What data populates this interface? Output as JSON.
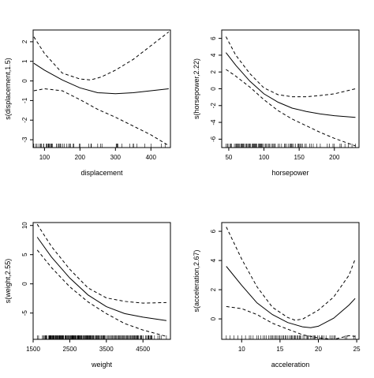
{
  "chart_data": [
    {
      "type": "line",
      "xlabel": "displacement",
      "ylabel": "s(displacement,1.5)",
      "xlim": [
        68,
        455
      ],
      "ylim": [
        -3.4,
        2.6
      ],
      "xticks": [
        100,
        200,
        300,
        400
      ],
      "yticks": [
        -3,
        -2,
        -1,
        0,
        1,
        2
      ],
      "series": [
        {
          "role": "fit",
          "x": [
            70,
            100,
            150,
            200,
            250,
            300,
            350,
            400,
            450
          ],
          "y": [
            0.9,
            0.55,
            0.05,
            -0.35,
            -0.6,
            -0.65,
            -0.6,
            -0.5,
            -0.4
          ]
        },
        {
          "role": "upper",
          "x": [
            70,
            100,
            150,
            200,
            230,
            260,
            300,
            350,
            400,
            450
          ],
          "y": [
            2.25,
            1.4,
            0.4,
            0.1,
            0.05,
            0.2,
            0.55,
            1.1,
            1.8,
            2.5
          ]
        },
        {
          "role": "lower",
          "x": [
            70,
            100,
            150,
            200,
            250,
            300,
            350,
            400,
            450
          ],
          "y": [
            -0.5,
            -0.4,
            -0.5,
            -0.95,
            -1.45,
            -1.85,
            -2.3,
            -2.75,
            -3.3
          ]
        }
      ],
      "rug": [
        70,
        76,
        79,
        85,
        89,
        90,
        91,
        97,
        98,
        105,
        107,
        108,
        111,
        112,
        113,
        116,
        119,
        120,
        121,
        122,
        134,
        135,
        140,
        141,
        144,
        146,
        151,
        156,
        163,
        168,
        171,
        173,
        181,
        183,
        198,
        200,
        225,
        231,
        232,
        250,
        258,
        262,
        302,
        304,
        305,
        307,
        318,
        340,
        350,
        351,
        360,
        383,
        400,
        429,
        440,
        455
      ]
    },
    {
      "type": "line",
      "xlabel": "horsepower",
      "ylabel": "s(horsepower,2.22)",
      "xlim": [
        40,
        235
      ],
      "ylim": [
        -7,
        7
      ],
      "xticks": [
        50,
        100,
        150,
        200
      ],
      "yticks": [
        -6,
        -4,
        -2,
        0,
        2,
        4,
        6
      ],
      "series": [
        {
          "role": "fit",
          "x": [
            46,
            60,
            80,
            100,
            120,
            140,
            160,
            180,
            200,
            230
          ],
          "y": [
            4.3,
            2.8,
            0.9,
            -0.6,
            -1.6,
            -2.3,
            -2.7,
            -3.0,
            -3.2,
            -3.4
          ]
        },
        {
          "role": "upper",
          "x": [
            46,
            60,
            80,
            100,
            120,
            140,
            160,
            180,
            200,
            230
          ],
          "y": [
            6.2,
            4.0,
            1.8,
            0.1,
            -0.7,
            -0.95,
            -0.95,
            -0.8,
            -0.6,
            0.0
          ]
        },
        {
          "role": "lower",
          "x": [
            46,
            60,
            80,
            100,
            120,
            140,
            160,
            180,
            200,
            230
          ],
          "y": [
            2.3,
            1.5,
            0.2,
            -1.3,
            -2.6,
            -3.6,
            -4.4,
            -5.2,
            -5.9,
            -6.8
          ]
        }
      ],
      "rug": [
        46,
        48,
        49,
        52,
        53,
        54,
        58,
        60,
        61,
        62,
        63,
        64,
        65,
        67,
        68,
        69,
        70,
        71,
        72,
        74,
        75,
        76,
        78,
        79,
        80,
        81,
        83,
        84,
        85,
        86,
        87,
        88,
        89,
        90,
        92,
        93,
        94,
        95,
        96,
        97,
        98,
        100,
        102,
        103,
        105,
        107,
        108,
        110,
        112,
        113,
        115,
        116,
        120,
        122,
        125,
        129,
        130,
        132,
        135,
        137,
        138,
        139,
        140,
        142,
        145,
        148,
        149,
        150,
        152,
        153,
        155,
        158,
        160,
        165,
        167,
        170,
        175,
        180,
        190,
        193,
        198,
        200,
        208,
        210,
        215,
        220,
        225,
        230
      ]
    },
    {
      "type": "line",
      "xlabel": "weight",
      "ylabel": "s(weight,2.55)",
      "xlim": [
        1500,
        5250
      ],
      "ylim": [
        -9.5,
        10.5
      ],
      "xticks": [
        1500,
        2500,
        3500,
        4500
      ],
      "yticks": [
        -5,
        0,
        5,
        10
      ],
      "series": [
        {
          "role": "fit",
          "x": [
            1613,
            2000,
            2500,
            3000,
            3500,
            4000,
            4500,
            5140
          ],
          "y": [
            8.0,
            4.6,
            1.0,
            -1.9,
            -3.9,
            -5.1,
            -5.7,
            -6.3
          ]
        },
        {
          "role": "upper",
          "x": [
            1613,
            2000,
            2500,
            3000,
            3500,
            4000,
            4500,
            5140
          ],
          "y": [
            10.2,
            6.4,
            2.5,
            -0.7,
            -2.4,
            -3.0,
            -3.3,
            -3.2
          ]
        },
        {
          "role": "lower",
          "x": [
            1613,
            2000,
            2500,
            3000,
            3500,
            4000,
            4500,
            5140
          ],
          "y": [
            5.8,
            2.8,
            -0.5,
            -3.1,
            -5.1,
            -6.8,
            -7.9,
            -9.0
          ]
        }
      ],
      "rug": [
        1613,
        1649,
        1755,
        1760,
        1795,
        1800,
        1825,
        1834,
        1845,
        1850,
        1867,
        1875,
        1925,
        1937,
        1950,
        1955,
        1963,
        1965,
        1968,
        1975,
        1985,
        1990,
        2000,
        2019,
        2035,
        2045,
        2050,
        2065,
        2075,
        2100,
        2110,
        2120,
        2125,
        2130,
        2135,
        2155,
        2164,
        2171,
        2190,
        2200,
        2215,
        2220,
        2228,
        2234,
        2245,
        2254,
        2265,
        2278,
        2290,
        2300,
        2310,
        2320,
        2335,
        2370,
        2379,
        2395,
        2401,
        2420,
        2430,
        2451,
        2464,
        2490,
        2500,
        2510,
        2525,
        2542,
        2556,
        2565,
        2572,
        2582,
        2595,
        2605,
        2620,
        2635,
        2648,
        2660,
        2670,
        2700,
        2711,
        2720,
        2735,
        2745,
        2755,
        2770,
        2789,
        2795,
        2800,
        2815,
        2830,
        2855,
        2870,
        2890,
        2900,
        2910,
        2930,
        2945,
        2950,
        2965,
        2979,
        2990,
        3003,
        3015,
        3035,
        3050,
        3060,
        3070,
        3085,
        3102,
        3121,
        3139,
        3150,
        3160,
        3190,
        3210,
        3230,
        3245,
        3265,
        3282,
        3288,
        3302,
        3329,
        3353,
        3365,
        3381,
        3410,
        3420,
        3425,
        3430,
        3440,
        3449,
        3465,
        3504,
        3530,
        3563,
        3570,
        3605,
        3613,
        3645,
        3664,
        3693,
        3720,
        3730,
        3755,
        3777,
        3785,
        3820,
        3830,
        3850,
        3870,
        3897,
        3907,
        3940,
        3955,
        3962,
        3988,
        4017,
        4042,
        4054,
        4080,
        4096,
        4100,
        4135,
        4141,
        4164,
        4190,
        4209,
        4215,
        4237,
        4257,
        4274,
        4294,
        4312,
        4335,
        4341,
        4354,
        4363,
        4382,
        4422,
        4440,
        4456,
        4464,
        4499,
        4502,
        4570,
        4597,
        4633,
        4638,
        4654,
        4668,
        4699,
        4720,
        4735,
        4746,
        4815,
        4906,
        4951,
        4955,
        4997,
        5140
      ]
    },
    {
      "type": "line",
      "xlabel": "acceleration",
      "ylabel": "s(acceleration,2.67)",
      "xlim": [
        7.4,
        25.3
      ],
      "ylim": [
        -1.4,
        6.6
      ],
      "xticks": [
        10,
        15,
        20,
        25
      ],
      "yticks": [
        0,
        2,
        4,
        6
      ],
      "series": [
        {
          "role": "fit",
          "x": [
            8,
            10,
            12,
            14,
            16,
            18,
            19,
            20,
            22,
            24,
            24.8
          ],
          "y": [
            3.6,
            2.3,
            1.1,
            0.3,
            -0.25,
            -0.55,
            -0.6,
            -0.5,
            0.05,
            0.95,
            1.4
          ]
        },
        {
          "role": "upper",
          "x": [
            8,
            10,
            12,
            14,
            16,
            17,
            18,
            20,
            22,
            24,
            24.8
          ],
          "y": [
            6.3,
            4.1,
            2.2,
            0.8,
            0.1,
            -0.1,
            0.0,
            0.6,
            1.5,
            3.0,
            4.1
          ]
        },
        {
          "role": "lower",
          "x": [
            8,
            10,
            12,
            14,
            16,
            18,
            20,
            22,
            24,
            24.8
          ],
          "y": [
            0.85,
            0.7,
            0.3,
            -0.3,
            -0.7,
            -1.1,
            -1.3,
            -1.4,
            -1.15,
            -1.2
          ]
        }
      ],
      "rug": [
        8,
        8.5,
        9,
        9.5,
        10,
        10.5,
        11,
        11.2,
        11.5,
        12,
        12.2,
        12.5,
        12.8,
        13,
        13.2,
        13.5,
        13.7,
        13.9,
        14,
        14.2,
        14.4,
        14.5,
        14.7,
        14.9,
        15,
        15.2,
        15.4,
        15.5,
        15.7,
        15.8,
        16,
        16.2,
        16.4,
        16.5,
        16.6,
        16.8,
        16.9,
        17,
        17.2,
        17.3,
        17.5,
        17.6,
        17.7,
        18,
        18.2,
        18.5,
        18.6,
        18.7,
        19,
        19.2,
        19.4,
        19.5,
        19.6,
        19.9,
        20.1,
        20.4,
        20.5,
        20.7,
        21,
        21.5,
        21.7,
        21.9,
        22.1,
        22.2,
        23.5,
        23.7,
        24.6,
        24.8
      ]
    }
  ]
}
